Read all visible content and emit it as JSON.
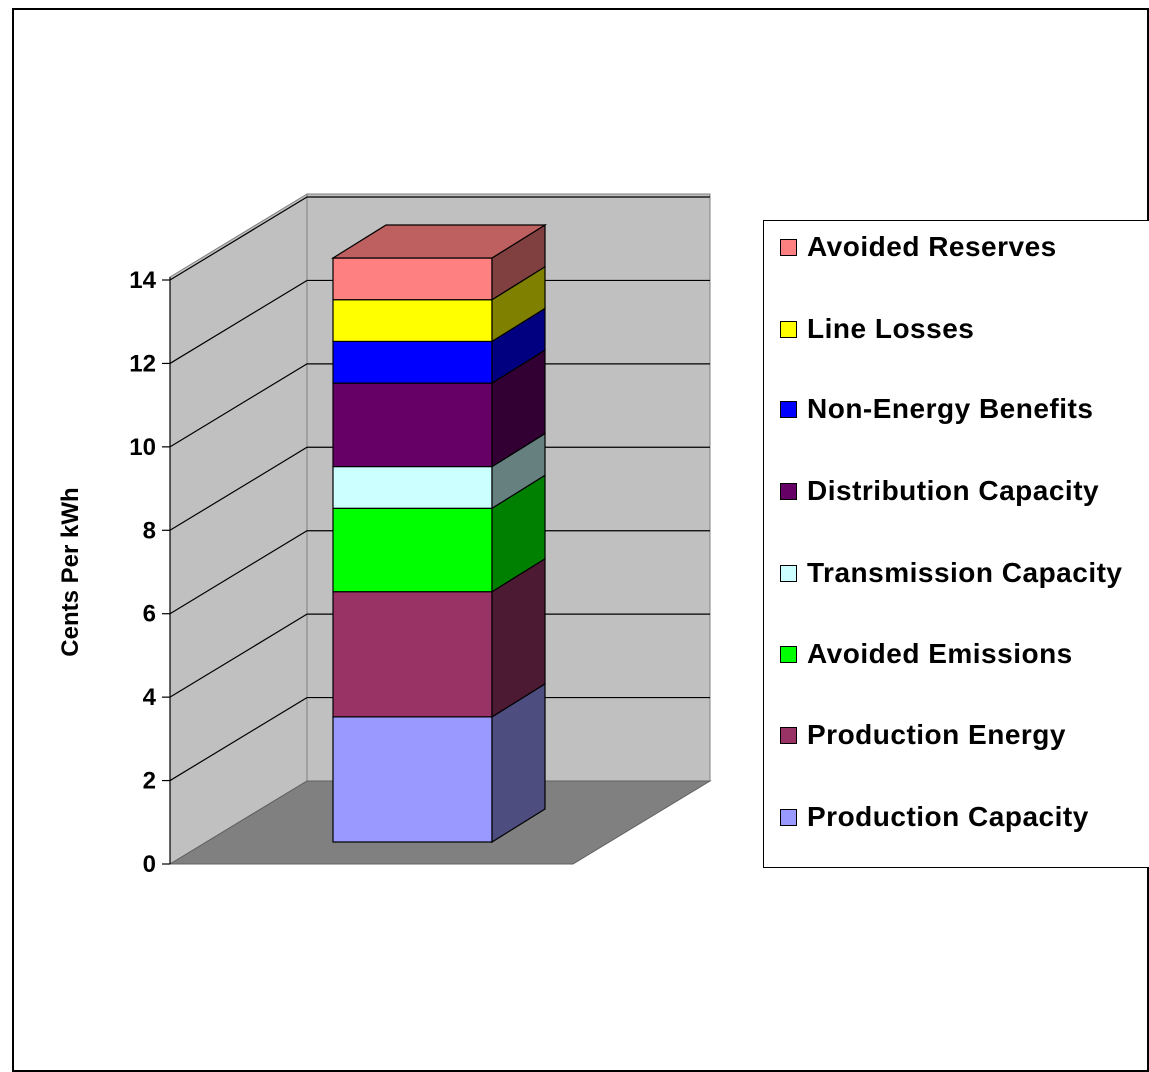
{
  "chart_data": {
    "type": "bar",
    "stacked": true,
    "three_d": true,
    "title": "",
    "xlabel": "",
    "ylabel": "Cents Per kWh",
    "ylim": [
      0,
      14
    ],
    "yticks": [
      "0",
      "2",
      "4",
      "6",
      "8",
      "10",
      "12",
      "14"
    ],
    "grid": true,
    "legend_position": "right",
    "categories": [
      ""
    ],
    "series": [
      {
        "name": "Production Capacity",
        "values": [
          3.0
        ],
        "color": "#9999ff"
      },
      {
        "name": "Production Energy",
        "values": [
          3.0
        ],
        "color": "#993366"
      },
      {
        "name": "Avoided Emissions",
        "values": [
          2.0
        ],
        "color": "#00ff00"
      },
      {
        "name": "Transmission Capacity",
        "values": [
          1.0
        ],
        "color": "#ccffff"
      },
      {
        "name": "Distribution Capacity",
        "values": [
          2.0
        ],
        "color": "#660066"
      },
      {
        "name": "Non-Energy Benefits",
        "values": [
          1.0
        ],
        "color": "#0000ff"
      },
      {
        "name": "Line Losses",
        "values": [
          1.0
        ],
        "color": "#ffff00"
      },
      {
        "name": "Avoided Reserves",
        "values": [
          1.0
        ],
        "color": "#ff8080"
      }
    ],
    "legend_order": [
      "Avoided Reserves",
      "Line Losses",
      "Non-Energy Benefits",
      "Distribution Capacity",
      "Transmission Capacity",
      "Avoided Emissions",
      "Production Energy",
      "Production Capacity"
    ],
    "colors": {
      "back_wall": "#c0c0c0",
      "floor": "#808080",
      "gridline": "#000000"
    }
  }
}
